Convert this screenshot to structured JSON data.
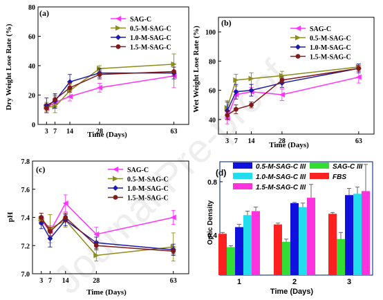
{
  "watermark": "Journal Pre-proof",
  "colors": {
    "SAG-C": "#ff33ff",
    "0.5-M-SAG-C": "#8c8c1a",
    "1.0-M-SAG-C": "#1a1aa6",
    "1.5-M-SAG-C": "#801a1a"
  },
  "chart_data": [
    {
      "id": "a",
      "type": "line",
      "panel_label": "(a)",
      "xlabel": "Time (Days)",
      "ylabel": "Dry Weight Lose Rate (%)",
      "xticks": [
        3,
        7,
        14,
        28,
        63
      ],
      "yticks": [
        0,
        20,
        40,
        60,
        80
      ],
      "ylim": [
        0,
        80
      ],
      "legend_position": "top-right",
      "x": [
        3,
        7,
        14,
        28,
        63
      ],
      "series": [
        {
          "name": "SAG-C",
          "color": "#ff33ff",
          "marker": "tri-left",
          "values": [
            11,
            15,
            19,
            25,
            33
          ],
          "errors": [
            3,
            4,
            3,
            3,
            8
          ]
        },
        {
          "name": "0.5-M-SAG-C",
          "color": "#8c8c1a",
          "marker": "tri-right",
          "values": [
            12,
            12,
            23,
            38,
            41
          ],
          "errors": [
            3,
            4,
            4,
            2,
            7
          ]
        },
        {
          "name": "1.0-M-SAG-C",
          "color": "#1a1aa6",
          "marker": "diamond",
          "values": [
            13,
            16,
            29,
            35,
            35
          ],
          "errors": [
            5,
            5,
            5,
            3,
            4
          ]
        },
        {
          "name": "1.5-M-SAG-C",
          "color": "#801a1a",
          "marker": "circle",
          "values": [
            11,
            17,
            25,
            34,
            36
          ],
          "errors": [
            3,
            3,
            3,
            3,
            3
          ]
        }
      ]
    },
    {
      "id": "b",
      "type": "line",
      "panel_label": "(b)",
      "xlabel": "Time (Days)",
      "ylabel": "Wet Weight Lose Rate (%)",
      "xticks": [
        3,
        7,
        14,
        28,
        63
      ],
      "yticks": [
        40,
        60,
        80,
        100
      ],
      "ylim": [
        30,
        110
      ],
      "legend_position": "top-right",
      "x": [
        3,
        7,
        14,
        28,
        63
      ],
      "series": [
        {
          "name": "SAG-C",
          "color": "#ff33ff",
          "marker": "tri-left",
          "values": [
            41,
            57,
            59,
            57,
            69
          ],
          "errors": [
            4,
            3,
            3,
            4,
            4
          ]
        },
        {
          "name": "0.5-M-SAG-C",
          "color": "#8c8c1a",
          "marker": "tri-right",
          "values": [
            48,
            67,
            68,
            70,
            76
          ],
          "errors": [
            5,
            4,
            4,
            3,
            2
          ]
        },
        {
          "name": "1.0-M-SAG-C",
          "color": "#1a1aa6",
          "marker": "diamond",
          "values": [
            46,
            59,
            60,
            65,
            75
          ],
          "errors": [
            6,
            5,
            4,
            3,
            3
          ]
        },
        {
          "name": "1.5-M-SAG-C",
          "color": "#801a1a",
          "marker": "circle",
          "values": [
            43,
            47,
            50,
            67,
            75
          ],
          "errors": [
            3,
            3,
            2,
            2,
            2
          ]
        }
      ]
    },
    {
      "id": "c",
      "type": "line",
      "panel_label": "(c)",
      "xlabel": "Time (Days)",
      "ylabel": "pH",
      "xticks": [
        3,
        7,
        14,
        28,
        63
      ],
      "yticks": [
        7.0,
        7.2,
        7.4,
        7.6,
        7.8
      ],
      "ylim": [
        7.0,
        7.8
      ],
      "legend_position": "top-right",
      "x": [
        3,
        7,
        14,
        28,
        63
      ],
      "series": [
        {
          "name": "SAG-C",
          "color": "#ff33ff",
          "marker": "tri-left",
          "values": [
            7.38,
            7.3,
            7.5,
            7.28,
            7.4
          ],
          "errors": [
            0.03,
            0.04,
            0.06,
            0.05,
            0.05
          ]
        },
        {
          "name": "0.5-M-SAG-C",
          "color": "#8c8c1a",
          "marker": "tri-right",
          "values": [
            7.39,
            7.32,
            7.38,
            7.13,
            7.19
          ],
          "errors": [
            0.04,
            0.1,
            0.05,
            0.04,
            0.1
          ]
        },
        {
          "name": "1.0-M-SAG-C",
          "color": "#1a1aa6",
          "marker": "diamond",
          "values": [
            7.36,
            7.25,
            7.38,
            7.22,
            7.17
          ],
          "errors": [
            0.04,
            0.06,
            0.04,
            0.04,
            0.04
          ]
        },
        {
          "name": "1.5-M-SAG-C",
          "color": "#801a1a",
          "marker": "circle",
          "values": [
            7.4,
            7.3,
            7.4,
            7.2,
            7.16
          ],
          "errors": [
            0.03,
            0.03,
            0.03,
            0.03,
            0.02
          ]
        }
      ]
    },
    {
      "id": "d",
      "type": "bar",
      "panel_label": "(d)",
      "xlabel": "Time (Days)",
      "ylabel": "Optic Density",
      "categories": [
        "1",
        "2",
        "3"
      ],
      "yticks": [
        0.4,
        0.8
      ],
      "ylim": [
        0.1,
        0.95
      ],
      "legend_position": "top",
      "series": [
        {
          "name": "FBS",
          "color": "#ff2020",
          "values": [
            0.41,
            0.48,
            0.56
          ],
          "errors": [
            0.01,
            0.01,
            0.01
          ]
        },
        {
          "name": "SAG-C III",
          "color": "#33dd33",
          "values": [
            0.31,
            0.35,
            0.37
          ],
          "errors": [
            0.01,
            0.02,
            0.05
          ]
        },
        {
          "name": "0.5-M-SAG-C III",
          "color": "#1111dd",
          "values": [
            0.46,
            0.64,
            0.7
          ],
          "errors": [
            0.02,
            0.005,
            0.05
          ]
        },
        {
          "name": "1.0-M-SAG-C III",
          "color": "#22ddee",
          "values": [
            0.55,
            0.61,
            0.71
          ],
          "errors": [
            0.03,
            0.03,
            0.05
          ]
        },
        {
          "name": "1.5-M-SAG-C III",
          "color": "#ff33dd",
          "values": [
            0.58,
            0.68,
            0.73
          ],
          "errors": [
            0.03,
            0.1,
            0.2
          ]
        }
      ],
      "legend_order": [
        "0.5-M-SAG-C III",
        "SAG-C III",
        "1.0-M-SAG-C III",
        "FBS",
        "1.5-M-SAG-C III"
      ]
    }
  ]
}
